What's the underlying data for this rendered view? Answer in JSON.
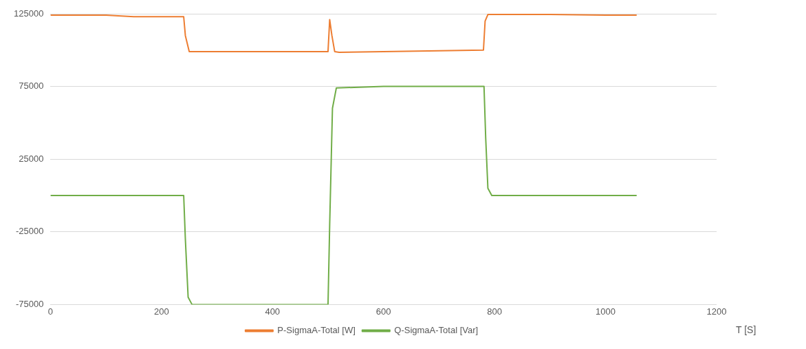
{
  "chart_data": {
    "type": "line",
    "xlabel": "T [S]",
    "xlim": [
      0,
      1200
    ],
    "xticks": [
      0,
      200,
      400,
      600,
      800,
      1000,
      1200
    ],
    "ylim": [
      -75000,
      125000
    ],
    "yticks": [
      -75000,
      -25000,
      25000,
      75000,
      125000
    ],
    "grid": "y",
    "legend": "bottom",
    "marker": "none",
    "line_style": "solid",
    "series": [
      {
        "name": "P-SigmaA-Total [W]",
        "color": "#ed7d31",
        "x": [
          0,
          100,
          150,
          240,
          243,
          250,
          300,
          400,
          500,
          503,
          507,
          512,
          520,
          600,
          700,
          780,
          783,
          788,
          800,
          900,
          1000,
          1056
        ],
        "values": [
          124000,
          124000,
          123000,
          123000,
          110000,
          99000,
          99000,
          99000,
          99000,
          121000,
          110000,
          99000,
          98500,
          99000,
          99500,
          100000,
          120000,
          124500,
          124500,
          124500,
          124000,
          124000
        ]
      },
      {
        "name": "Q-SigmaA-Total [Var]",
        "color": "#70ad47",
        "x": [
          0,
          100,
          200,
          240,
          243,
          248,
          255,
          300,
          400,
          500,
          503,
          508,
          515,
          600,
          700,
          781,
          784,
          788,
          795,
          900,
          1000,
          1056
        ],
        "values": [
          0,
          0,
          0,
          0,
          -30000,
          -70000,
          -75000,
          -75000,
          -75000,
          -75000,
          -20000,
          60000,
          74000,
          75000,
          75000,
          75000,
          40000,
          5000,
          0,
          0,
          0,
          0
        ]
      }
    ]
  }
}
